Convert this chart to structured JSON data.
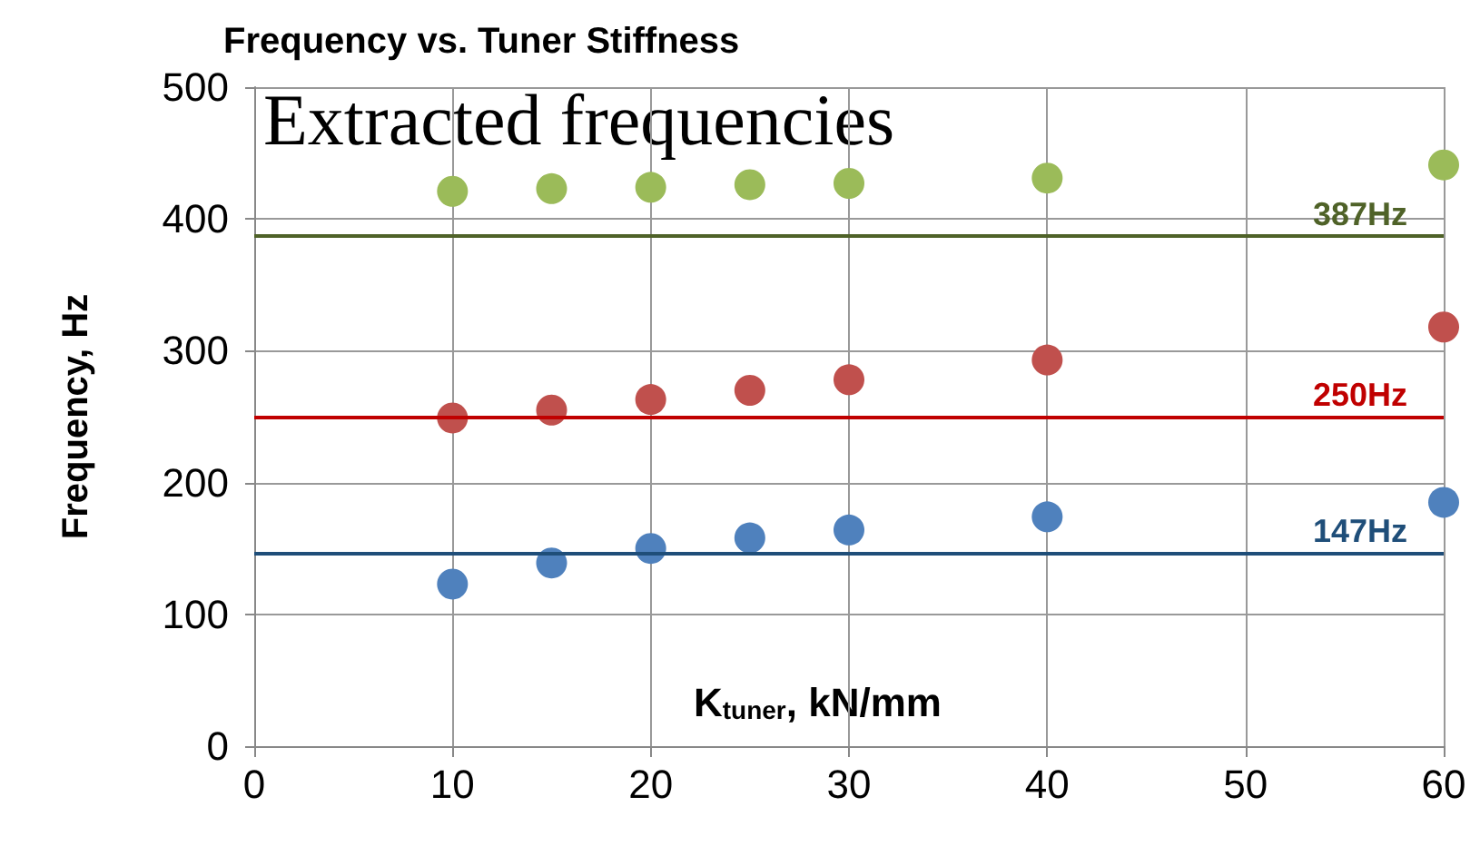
{
  "chart_data": {
    "type": "scatter",
    "title": "Frequency vs. Tuner Stiffness",
    "xlabel": "K$_{tuner}$, kN/mm",
    "ylabel": "Frequency, Hz",
    "annotations": [
      "Extracted frequencies"
    ],
    "x": [
      10,
      15,
      20,
      25,
      30,
      40,
      60
    ],
    "series": [
      {
        "color": "#9bbb59",
        "values": [
          421,
          423,
          424,
          426,
          427,
          431,
          441
        ]
      },
      {
        "color": "#c0504d",
        "values": [
          249,
          255,
          263,
          270,
          278,
          293,
          318
        ]
      },
      {
        "color": "#4f81bd",
        "values": [
          123,
          139,
          150,
          158,
          164,
          174,
          185
        ]
      }
    ],
    "ref_lines": [
      {
        "axis": "y",
        "value": 387,
        "label": "387Hz",
        "color": "#4f6228"
      },
      {
        "axis": "y",
        "value": 250,
        "label": "250Hz",
        "color": "#c00000"
      },
      {
        "axis": "y",
        "value": 147,
        "label": "147Hz",
        "color": "#1f4e79"
      }
    ],
    "xlim": [
      0,
      60
    ],
    "xticks": [
      0,
      10,
      20,
      30,
      40,
      50,
      60
    ],
    "ylim": [
      0,
      500
    ],
    "yticks": [
      0,
      100,
      200,
      300,
      400,
      500
    ],
    "grid": true,
    "marker": "circle"
  }
}
